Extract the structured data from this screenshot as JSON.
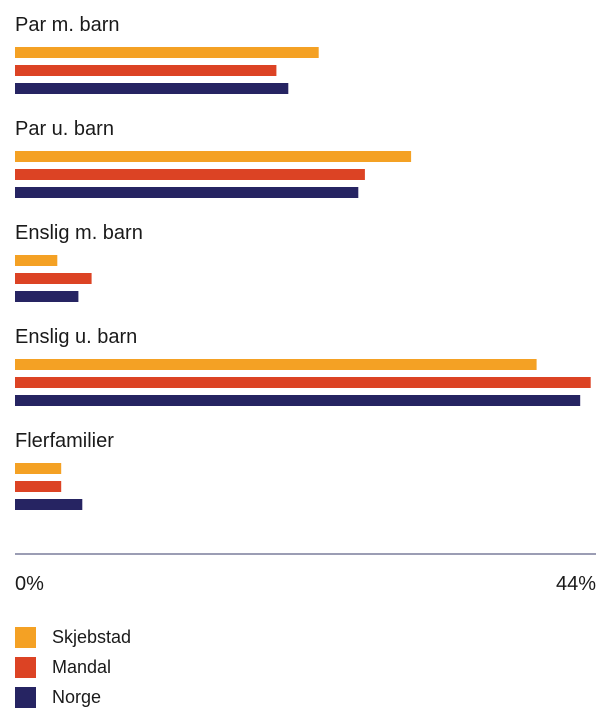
{
  "chart_data": {
    "type": "bar",
    "orientation": "horizontal",
    "categories": [
      "Par m. barn",
      "Par u. barn",
      "Enslig m. barn",
      "Enslig u. barn",
      "Flerfamilier"
    ],
    "series": [
      {
        "name": "Skjebstad",
        "color": "#f4a124",
        "values": [
          23.0,
          30.0,
          3.2,
          39.5,
          3.5
        ]
      },
      {
        "name": "Mandal",
        "color": "#dc4324",
        "values": [
          19.8,
          26.5,
          5.8,
          43.6,
          3.5
        ]
      },
      {
        "name": "Norge",
        "color": "#262462",
        "values": [
          20.7,
          26.0,
          4.8,
          42.8,
          5.1
        ]
      }
    ],
    "xlim": [
      0,
      44
    ],
    "x_tick_labels": [
      "0%",
      "44%"
    ],
    "axis_color": "#7a7d9c",
    "legend_position": "bottom-left",
    "grid": false
  }
}
